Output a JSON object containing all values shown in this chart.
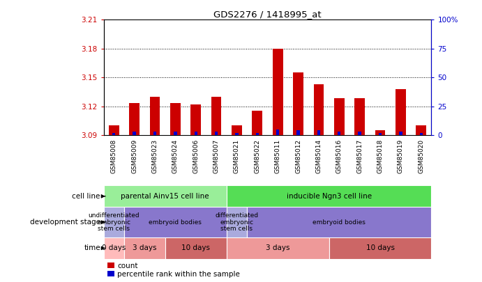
{
  "title": "GDS2276 / 1418995_at",
  "samples": [
    "GSM85008",
    "GSM85009",
    "GSM85023",
    "GSM85024",
    "GSM85006",
    "GSM85007",
    "GSM85021",
    "GSM85022",
    "GSM85011",
    "GSM85012",
    "GSM85014",
    "GSM85016",
    "GSM85017",
    "GSM85018",
    "GSM85019",
    "GSM85020"
  ],
  "count_values": [
    3.1,
    3.123,
    3.13,
    3.123,
    3.122,
    3.13,
    3.1,
    3.115,
    3.18,
    3.155,
    3.143,
    3.128,
    3.128,
    3.095,
    3.138,
    3.1
  ],
  "percentile_values": [
    2,
    3,
    3,
    3,
    3,
    3,
    2,
    2,
    5,
    4,
    4,
    3,
    3,
    2,
    3,
    2
  ],
  "ylim_left": [
    3.09,
    3.21
  ],
  "ylim_right": [
    0,
    100
  ],
  "yticks_left": [
    3.09,
    3.12,
    3.15,
    3.18,
    3.21
  ],
  "yticks_right": [
    0,
    25,
    50,
    75,
    100
  ],
  "ytick_labels_right": [
    "0",
    "25",
    "50",
    "75",
    "100%"
  ],
  "bar_color": "#cc0000",
  "pct_color": "#0000cc",
  "bg_color": "#ffffff",
  "xticklabel_bg": "#cccccc",
  "cell_line_row": {
    "label": "cell line",
    "groups": [
      {
        "text": "parental Ainv15 cell line",
        "start": 0,
        "end": 6,
        "color": "#99ee99"
      },
      {
        "text": "inducible Ngn3 cell line",
        "start": 6,
        "end": 16,
        "color": "#55dd55"
      }
    ]
  },
  "dev_stage_row": {
    "label": "development stage",
    "groups": [
      {
        "text": "undifferentiated\nembryonic\nstem cells",
        "start": 0,
        "end": 1,
        "color": "#aaaadd"
      },
      {
        "text": "embryoid bodies",
        "start": 1,
        "end": 6,
        "color": "#8877cc"
      },
      {
        "text": "differentiated\nembryonic\nstem cells",
        "start": 6,
        "end": 7,
        "color": "#aaaadd"
      },
      {
        "text": "embryoid bodies",
        "start": 7,
        "end": 16,
        "color": "#8877cc"
      }
    ]
  },
  "time_row": {
    "label": "time",
    "groups": [
      {
        "text": "0 days",
        "start": 0,
        "end": 1,
        "color": "#ffbbbb"
      },
      {
        "text": "3 days",
        "start": 1,
        "end": 3,
        "color": "#ee9999"
      },
      {
        "text": "10 days",
        "start": 3,
        "end": 6,
        "color": "#cc6666"
      },
      {
        "text": "3 days",
        "start": 6,
        "end": 11,
        "color": "#ee9999"
      },
      {
        "text": "10 days",
        "start": 11,
        "end": 16,
        "color": "#cc6666"
      }
    ]
  },
  "legend": [
    {
      "label": "count",
      "color": "#cc0000"
    },
    {
      "label": "percentile rank within the sample",
      "color": "#0000cc"
    }
  ]
}
